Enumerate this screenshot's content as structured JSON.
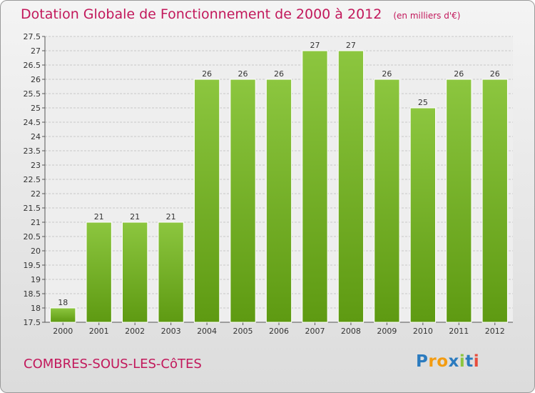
{
  "chart_data": {
    "type": "bar",
    "title": "Dotation Globale de Fonctionnement de 2000 à 2012",
    "unit_note": "(en milliers d'€)",
    "categories": [
      "2000",
      "2001",
      "2002",
      "2003",
      "2004",
      "2005",
      "2006",
      "2007",
      "2008",
      "2009",
      "2010",
      "2011",
      "2012"
    ],
    "values": [
      18,
      21,
      21,
      21,
      26,
      26,
      26,
      27,
      27,
      26,
      25,
      26,
      26
    ],
    "ylim": [
      17.5,
      27.5
    ],
    "yticks": [
      "17.5",
      "18",
      "18.5",
      "19",
      "19.5",
      "20",
      "20.5",
      "21",
      "21.5",
      "22",
      "22.5",
      "23",
      "23.5",
      "24",
      "24.5",
      "25",
      "25.5",
      "26",
      "26.5",
      "27",
      "27.5"
    ],
    "grid": true,
    "bar_color": "#8cc63f",
    "bar_color_dark": "#5e9a12"
  },
  "footer": {
    "city": "COMBRES-SOUS-LES-CôTES",
    "logo_text": "Proxiti",
    "logo_colors": [
      "#2b7bbf",
      "#f39c12",
      "#f39c12",
      "#2b7bbf",
      "#8cc63f",
      "#2b7bbf",
      "#e74c3c"
    ]
  }
}
